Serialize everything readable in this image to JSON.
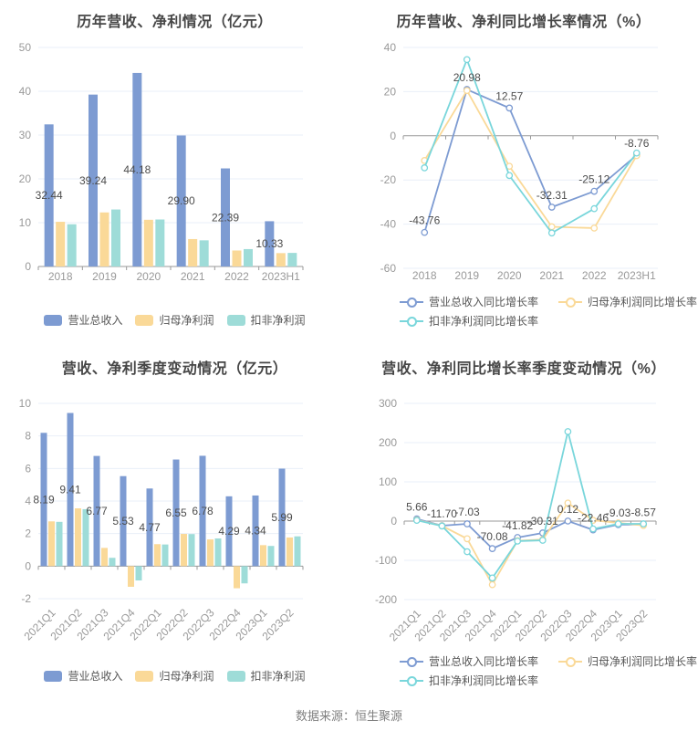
{
  "footer": "数据来源：恒生聚源",
  "colors": {
    "revenue": "#7D9BD2",
    "net_profit": "#FAD998",
    "non_gaap_bar": "#9EDCD8",
    "non_gaap_line": "#79D6DB",
    "grid_line": "#E9EFF8",
    "axis_line": "#999999",
    "title_text": "#464646",
    "tick_text": "#999999",
    "value_label_text": "#4D4D4D",
    "legend_text": "#555555",
    "footer_text": "#808080"
  },
  "chart_data": [
    {
      "id": "yearly-amounts",
      "type": "bar",
      "title": "历年营收、净利情况（亿元）",
      "xlabel": "",
      "ylabel": "亿元",
      "categories": [
        "2018",
        "2019",
        "2020",
        "2021",
        "2022",
        "2023H1"
      ],
      "ylim": [
        0,
        50
      ],
      "yticks": [
        50,
        40,
        30,
        20,
        10,
        0
      ],
      "grid": true,
      "legend_position": "bottom-center",
      "series": [
        {
          "name": "营业总收入",
          "color_key": "revenue",
          "values": [
            32.44,
            39.24,
            44.18,
            29.9,
            22.39,
            10.33
          ],
          "labels": [
            "32.44",
            "39.24",
            "44.18",
            "29.90",
            "22.39",
            "10.33"
          ]
        },
        {
          "name": "归母净利润",
          "color_key": "net_profit",
          "values": [
            10.2,
            12.34,
            10.66,
            6.26,
            3.65,
            3.05
          ]
        },
        {
          "name": "扣非净利润",
          "color_key": "non_gaap_bar",
          "values": [
            9.64,
            13.01,
            10.73,
            5.97,
            3.97,
            3.1
          ]
        }
      ]
    },
    {
      "id": "yearly-growth",
      "type": "line",
      "title": "历年营收、净利同比增长率情况（%）",
      "xlabel": "",
      "ylabel": "%",
      "categories": [
        "2018",
        "2019",
        "2020",
        "2021",
        "2022",
        "2023H1"
      ],
      "ylim": [
        -60,
        40
      ],
      "yticks": [
        40,
        20,
        0,
        -20,
        -40,
        -60
      ],
      "grid": true,
      "legend_position": "bottom-left-two-rows",
      "series": [
        {
          "name": "营业总收入同比增长率",
          "color_key": "revenue",
          "values": [
            -43.76,
            20.98,
            12.57,
            -32.31,
            -25.12,
            -8.76
          ],
          "labels": [
            "-43.76",
            "20.98",
            "12.57",
            "-32.31",
            "-25.12",
            "-8.76"
          ]
        },
        {
          "name": "归母净利润同比增长率",
          "color_key": "net_profit",
          "values": [
            -11.2,
            20.5,
            -13.8,
            -41.2,
            -41.8,
            -9.0
          ]
        },
        {
          "name": "扣非净利润同比增长率",
          "color_key": "non_gaap_line",
          "values": [
            -14.5,
            34.5,
            -18.0,
            -44.0,
            -33.0,
            -7.8
          ]
        }
      ]
    },
    {
      "id": "quarterly-amounts",
      "type": "bar",
      "title": "营收、净利季度变动情况（亿元）",
      "xlabel": "",
      "ylabel": "亿元",
      "categories": [
        "2021Q1",
        "2021Q2",
        "2021Q3",
        "2021Q4",
        "2022Q1",
        "2022Q2",
        "2022Q3",
        "2022Q4",
        "2023Q1",
        "2023Q2"
      ],
      "ylim": [
        -2,
        10
      ],
      "yticks": [
        10,
        8,
        6,
        4,
        2,
        0,
        -2
      ],
      "grid": true,
      "rotated_category_labels": true,
      "legend_position": "bottom-center",
      "series": [
        {
          "name": "营业总收入",
          "color_key": "revenue",
          "values": [
            8.19,
            9.41,
            6.77,
            5.53,
            4.77,
            6.55,
            6.78,
            4.29,
            4.34,
            5.99
          ],
          "labels": [
            "8.19",
            "9.41",
            "6.77",
            "5.53",
            "4.77",
            "6.55",
            "6.78",
            "4.29",
            "4.34",
            "5.99"
          ]
        },
        {
          "name": "归母净利润",
          "color_key": "net_profit",
          "values": [
            2.75,
            3.55,
            1.12,
            -1.27,
            1.35,
            1.98,
            1.64,
            -1.36,
            1.29,
            1.76
          ]
        },
        {
          "name": "扣非净利润",
          "color_key": "non_gaap_bar",
          "values": [
            2.72,
            3.5,
            0.51,
            -0.88,
            1.33,
            1.97,
            1.7,
            -1.06,
            1.24,
            1.83
          ]
        }
      ]
    },
    {
      "id": "quarterly-growth",
      "type": "line",
      "title": "营收、净利同比增长率季度变动情况（%）",
      "xlabel": "",
      "ylabel": "%",
      "categories": [
        "2021Q1",
        "2021Q2",
        "2021Q3",
        "2021Q4",
        "2022Q1",
        "2022Q2",
        "2022Q3",
        "2022Q4",
        "2023Q1",
        "2023Q2"
      ],
      "ylim": [
        -200,
        300
      ],
      "yticks": [
        300,
        200,
        100,
        0,
        -100,
        -200
      ],
      "grid": true,
      "rotated_category_labels": true,
      "legend_position": "bottom-left-two-rows",
      "series": [
        {
          "name": "营业总收入同比增长率",
          "color_key": "revenue",
          "values": [
            5.66,
            -11.7,
            -7.03,
            -70.08,
            -41.82,
            -30.31,
            0.12,
            -22.46,
            -9.03,
            -8.57
          ],
          "labels": [
            "5.66",
            "-11.70",
            "-7.03",
            "-70.08",
            "-41.82",
            "-30.31",
            "0.12",
            "-22.46",
            "-9.03",
            "-8.57"
          ]
        },
        {
          "name": "归母净利润同比增长率",
          "color_key": "net_profit",
          "values": [
            3.0,
            -12.0,
            -45.0,
            -162.0,
            -50.0,
            -47.0,
            46.0,
            2.0,
            -4.5,
            -11.0
          ]
        },
        {
          "name": "扣非净利润同比增长率",
          "color_key": "non_gaap_line",
          "values": [
            2.0,
            -12.5,
            -78.0,
            -145.0,
            -51.0,
            -49.0,
            228.0,
            -20.0,
            -7.0,
            -7.0
          ]
        }
      ]
    }
  ]
}
